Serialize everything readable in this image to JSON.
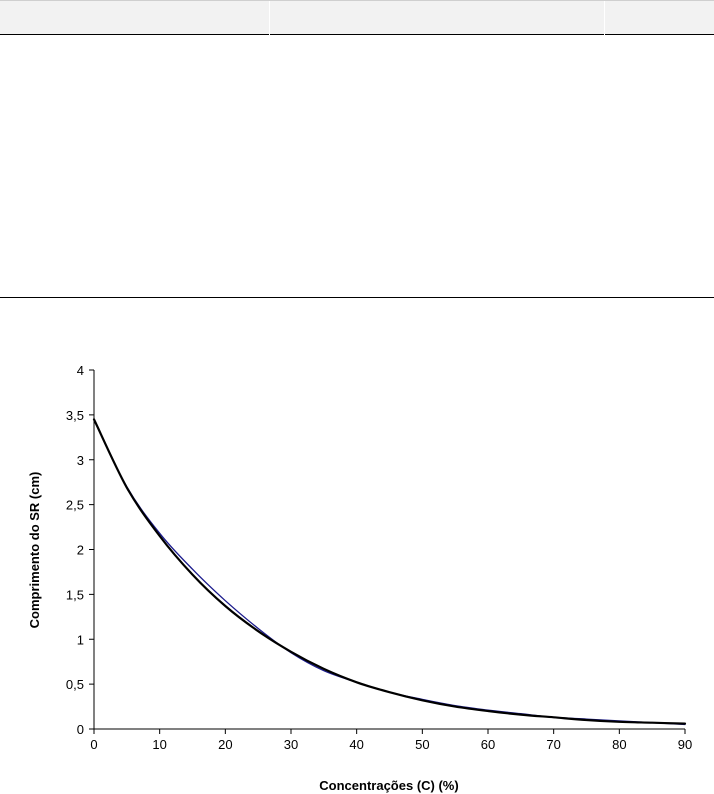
{
  "chart_data": {
    "type": "line",
    "xlabel": "Concentrações (C) (%)",
    "ylabel": "Comprimento do SR (cm)",
    "xlim": [
      0,
      90
    ],
    "ylim": [
      0,
      4
    ],
    "x_ticks": [
      "0",
      "10",
      "20",
      "30",
      "40",
      "50",
      "60",
      "70",
      "80",
      "90"
    ],
    "y_ticks": [
      "0",
      "0,5",
      "1",
      "1,5",
      "2",
      "2,5",
      "3",
      "3,5",
      "4"
    ],
    "grid": false,
    "legend": "none",
    "series": [
      {
        "color": "#1a1a8c",
        "x": [
          0,
          5,
          10,
          15,
          20,
          25,
          30,
          35,
          40,
          45,
          50,
          55,
          60,
          65,
          70,
          75,
          80,
          85,
          90
        ],
        "y": [
          3.45,
          2.7,
          2.18,
          1.78,
          1.43,
          1.12,
          0.85,
          0.65,
          0.52,
          0.41,
          0.33,
          0.26,
          0.21,
          0.17,
          0.13,
          0.11,
          0.09,
          0.07,
          0.05
        ]
      },
      {
        "color": "#000000",
        "x": [
          0,
          5,
          10,
          15,
          20,
          25,
          30,
          35,
          40,
          45,
          50,
          55,
          60,
          65,
          70,
          75,
          80,
          85,
          90
        ],
        "y": [
          3.45,
          2.69,
          2.15,
          1.72,
          1.37,
          1.09,
          0.86,
          0.67,
          0.52,
          0.41,
          0.32,
          0.25,
          0.2,
          0.16,
          0.13,
          0.1,
          0.08,
          0.07,
          0.06
        ]
      }
    ]
  }
}
